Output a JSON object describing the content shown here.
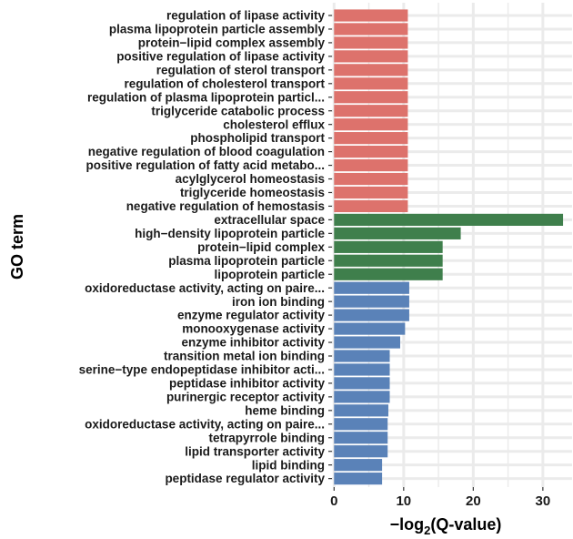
{
  "chart_data": {
    "type": "bar",
    "orientation": "horizontal",
    "ylabel": "GO term",
    "xlabel_main": "−log",
    "xlabel_sub": "2",
    "xlabel_tail": "(Q-value)",
    "xlim": [
      -0.3,
      34.2
    ],
    "xticks": [
      0,
      10,
      20,
      30
    ],
    "grid": true,
    "legend": "none",
    "colors": {
      "group1": "#dd726c",
      "group2": "#3f7f4c",
      "group3": "#5a82b8",
      "grid": "#ebebeb"
    },
    "categories": [
      "regulation of lipase activity",
      "plasma lipoprotein particle assembly",
      "protein−lipid complex assembly",
      "positive regulation of lipase activity",
      "regulation of sterol transport",
      "regulation of cholesterol transport",
      "regulation of plasma lipoprotein particl...",
      "triglyceride catabolic process",
      "cholesterol efflux",
      "phospholipid transport",
      "negative regulation of blood coagulation",
      "positive regulation of fatty acid metabo...",
      "acylglycerol homeostasis",
      "triglyceride homeostasis",
      "negative regulation of hemostasis",
      "extracellular space",
      "high−density lipoprotein particle",
      "protein−lipid complex",
      "plasma lipoprotein particle",
      "lipoprotein particle",
      "oxidoreductase activity, acting on paire...",
      "iron ion binding",
      "enzyme regulator activity",
      "monooxygenase activity",
      "enzyme inhibitor activity",
      "transition metal ion binding",
      "serine−type endopeptidase inhibitor acti...",
      "peptidase inhibitor activity",
      "purinergic receptor activity",
      "heme binding",
      "oxidoreductase activity, acting on paire...",
      "tetrapyrrole binding",
      "lipid transporter activity",
      "lipid binding",
      "peptidase regulator activity"
    ],
    "values": [
      10.6,
      10.6,
      10.6,
      10.6,
      10.6,
      10.6,
      10.6,
      10.6,
      10.6,
      10.6,
      10.6,
      10.6,
      10.6,
      10.6,
      10.6,
      32.9,
      18.2,
      15.6,
      15.6,
      15.6,
      10.8,
      10.8,
      10.8,
      10.2,
      9.5,
      8.0,
      8.0,
      8.0,
      8.0,
      7.8,
      7.7,
      7.7,
      7.7,
      6.9,
      6.9
    ],
    "groups": [
      1,
      1,
      1,
      1,
      1,
      1,
      1,
      1,
      1,
      1,
      1,
      1,
      1,
      1,
      1,
      2,
      2,
      2,
      2,
      2,
      3,
      3,
      3,
      3,
      3,
      3,
      3,
      3,
      3,
      3,
      3,
      3,
      3,
      3,
      3
    ]
  }
}
